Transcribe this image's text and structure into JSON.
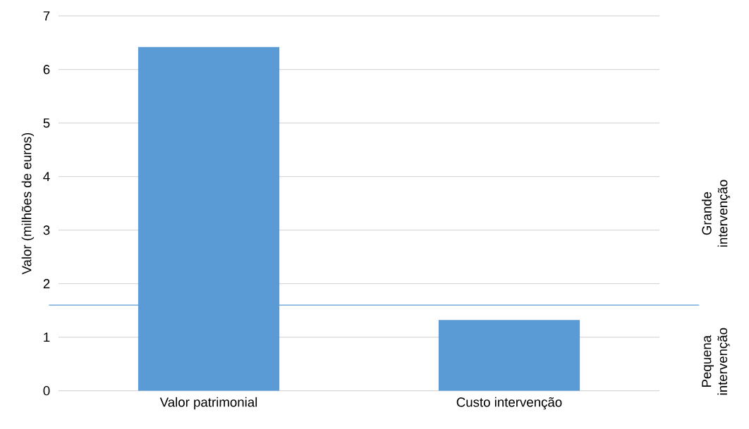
{
  "chart_data": {
    "type": "bar",
    "ylabel": "Valor (milhões de euros)",
    "categories": [
      "Valor patrimonial",
      "Custo intervenção"
    ],
    "values": [
      6.42,
      1.32
    ],
    "color": "#5b9bd5",
    "ylim": [
      0,
      7
    ],
    "yticks": [
      0,
      1,
      2,
      3,
      4,
      5,
      6,
      7
    ],
    "grid": "y",
    "ref_lines": [
      {
        "axis": "y",
        "value": 1.6,
        "color": "#5b9bd5"
      }
    ],
    "annotations": [
      "Grande intervenção",
      "Pequena intervenção"
    ]
  }
}
